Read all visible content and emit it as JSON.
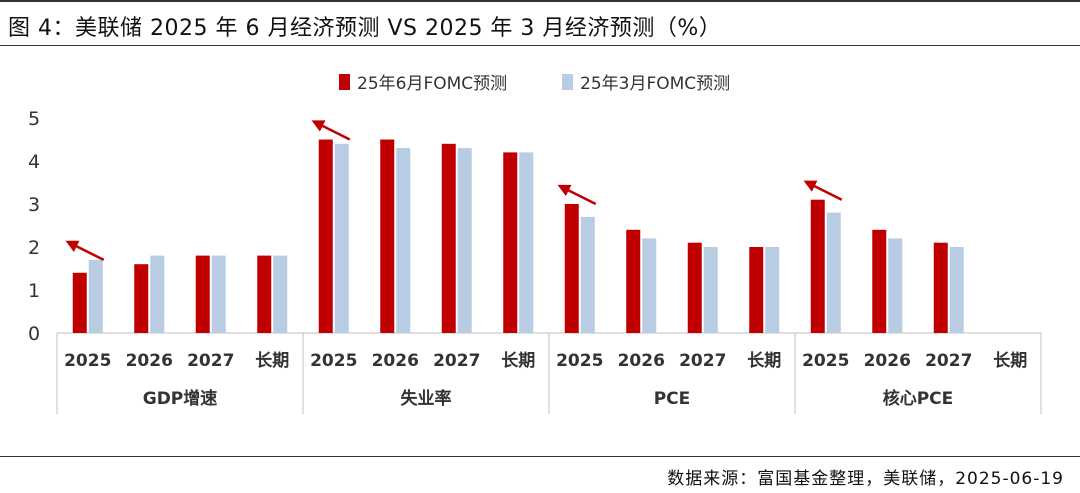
{
  "header": {
    "title": "图 4：美联储 2025 年 6 月经济预测 VS 2025 年 3 月经济预测（%）"
  },
  "footer": {
    "source": "数据来源：富国基金整理，美联储，2025-06-19"
  },
  "colors": {
    "june": "#C00000",
    "march": "#B8CCE4",
    "arrow": "#C00000",
    "axis": "#BFBFBF",
    "text": "#333333"
  },
  "chart_data": {
    "type": "bar",
    "groups": [
      {
        "label": "GDP增速",
        "categories": [
          "2025",
          "2026",
          "2027",
          "长期"
        ]
      },
      {
        "label": "失业率",
        "categories": [
          "2025",
          "2026",
          "2027",
          "长期"
        ]
      },
      {
        "label": "PCE",
        "categories": [
          "2025",
          "2026",
          "2027",
          "长期"
        ]
      },
      {
        "label": "核心PCE",
        "categories": [
          "2025",
          "2026",
          "2027",
          "长期"
        ]
      }
    ],
    "series": [
      {
        "name": "25年6月FOMC预测",
        "values": [
          1.4,
          1.6,
          1.8,
          1.8,
          4.5,
          4.5,
          4.4,
          4.2,
          3.0,
          2.4,
          2.1,
          2.0,
          3.1,
          2.4,
          2.1,
          null
        ]
      },
      {
        "name": "25年3月FOMC预测",
        "values": [
          1.7,
          1.8,
          1.8,
          1.8,
          4.4,
          4.3,
          4.3,
          4.2,
          2.7,
          2.2,
          2.0,
          2.0,
          2.8,
          2.2,
          2.0,
          null
        ]
      }
    ],
    "y_ticks": [
      "0",
      "1",
      "2",
      "3",
      "4",
      "5"
    ],
    "ylim": [
      0,
      5
    ],
    "legend_position": "top-center",
    "grid": false,
    "annotations": [
      {
        "type": "arrow",
        "category_index": 0
      },
      {
        "type": "arrow",
        "category_index": 4
      },
      {
        "type": "arrow",
        "category_index": 8
      },
      {
        "type": "arrow",
        "category_index": 12
      }
    ]
  }
}
